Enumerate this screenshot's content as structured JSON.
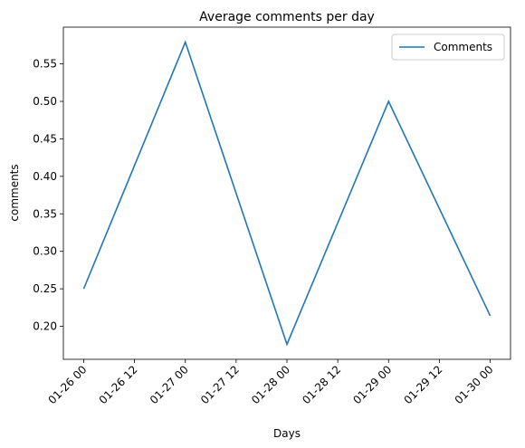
{
  "chart_data": {
    "type": "line",
    "title": "Average comments per day",
    "xlabel": "Days",
    "ylabel": "comments",
    "x": [
      "2025-01-26 00:00",
      "2025-01-27 00:00",
      "2025-01-28 00:00",
      "2025-01-29 00:00",
      "2025-01-30 00:00"
    ],
    "series": [
      {
        "name": "Comments",
        "color": "#1f77b4",
        "values": [
          0.25,
          0.579,
          0.176,
          0.5,
          0.214
        ]
      }
    ],
    "x_ticks": [
      "01-26 00",
      "01-26 12",
      "01-27 00",
      "01-27 12",
      "01-28 00",
      "01-28 12",
      "01-29 00",
      "01-29 12",
      "01-30 00"
    ],
    "y_ticks": [
      "0.20",
      "0.25",
      "0.30",
      "0.35",
      "0.40",
      "0.45",
      "0.50",
      "0.55"
    ],
    "y_tick_values": [
      0.2,
      0.25,
      0.3,
      0.35,
      0.4,
      0.45,
      0.5,
      0.55
    ],
    "ylim": [
      0.156,
      0.599
    ],
    "xlim_days": [
      -0.2,
      4.2
    ],
    "grid": false,
    "legend_position": "upper right"
  }
}
